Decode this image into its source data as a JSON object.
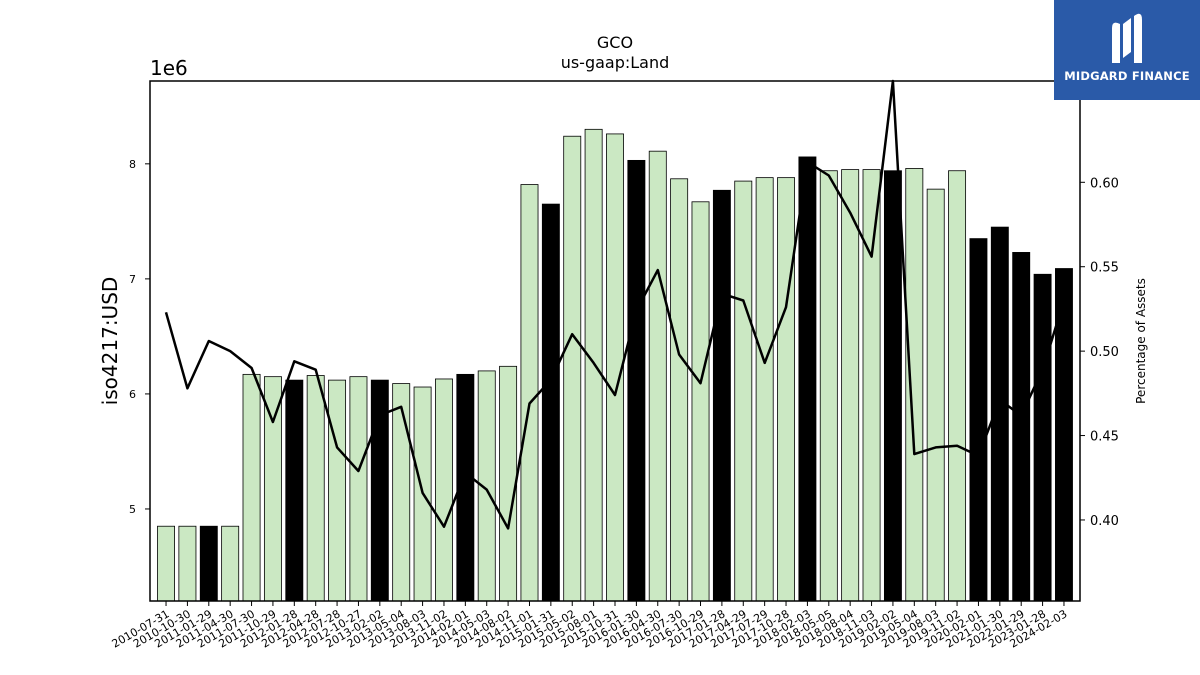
{
  "chart_data": {
    "type": "bar",
    "title": "GCO",
    "subtitle": "us-gaap:Land",
    "ylabel": "iso4217:USD",
    "y2label": "Percentage of Assets",
    "y_multiplier": "1e6",
    "ylim": [
      4.2,
      8.72
    ],
    "y2lim": [
      0.352,
      0.66
    ],
    "yticks": [
      5,
      6,
      7,
      8
    ],
    "y2ticks": [
      "0.40",
      "0.45",
      "0.50",
      "0.55",
      "0.60"
    ],
    "categories": [
      "2010-07-31",
      "2010-10-30",
      "2011-01-29",
      "2011-04-30",
      "2011-07-30",
      "2011-10-29",
      "2012-01-28",
      "2012-04-28",
      "2012-07-28",
      "2012-10-27",
      "2013-02-02",
      "2013-05-04",
      "2013-08-03",
      "2013-11-02",
      "2014-02-01",
      "2014-05-03",
      "2014-08-02",
      "2014-11-01",
      "2015-01-31",
      "2015-05-02",
      "2015-08-01",
      "2015-10-31",
      "2016-01-30",
      "2016-04-30",
      "2016-07-30",
      "2016-10-29",
      "2017-01-28",
      "2017-04-29",
      "2017-07-29",
      "2017-10-28",
      "2018-02-03",
      "2018-05-05",
      "2018-08-04",
      "2018-11-03",
      "2019-02-02",
      "2019-05-04",
      "2019-08-03",
      "2019-11-02",
      "2020-02-01",
      "2021-01-30",
      "2022-01-29",
      "2023-01-28",
      "2024-02-03"
    ],
    "series": [
      {
        "kind": "bar",
        "values": [
          4.85,
          4.85,
          4.85,
          4.85,
          6.17,
          6.15,
          6.12,
          6.16,
          6.12,
          6.15,
          6.12,
          6.09,
          6.06,
          6.13,
          6.17,
          6.2,
          6.24,
          7.82,
          7.65,
          8.24,
          8.3,
          8.26,
          8.03,
          8.11,
          7.87,
          7.67,
          7.77,
          7.85,
          7.88,
          7.88,
          8.06,
          7.94,
          7.95,
          7.95,
          7.94,
          7.96,
          7.78,
          7.94,
          7.35,
          7.45,
          7.23,
          7.04,
          7.09
        ],
        "highlight": [
          false,
          false,
          true,
          false,
          false,
          false,
          true,
          false,
          false,
          false,
          true,
          false,
          false,
          false,
          true,
          false,
          false,
          false,
          true,
          false,
          false,
          false,
          true,
          false,
          false,
          false,
          true,
          false,
          false,
          false,
          true,
          false,
          false,
          false,
          true,
          false,
          false,
          false,
          true,
          true,
          true,
          true,
          true
        ]
      },
      {
        "kind": "line",
        "axis": "right",
        "values": [
          0.523,
          0.478,
          0.506,
          0.5,
          0.49,
          0.458,
          0.494,
          0.489,
          0.443,
          0.429,
          0.462,
          0.467,
          0.416,
          0.396,
          0.428,
          0.418,
          0.395,
          0.469,
          0.483,
          0.51,
          0.493,
          0.474,
          0.524,
          0.548,
          0.498,
          0.481,
          0.534,
          0.53,
          0.493,
          0.526,
          0.612,
          0.604,
          0.582,
          0.556,
          0.66,
          0.439,
          0.443,
          0.444,
          0.438,
          0.471,
          0.462,
          0.489,
          0.53
        ]
      }
    ],
    "colors": {
      "bar": "#cbe8c3",
      "bar_highlight": "#000000",
      "line": "#000000"
    }
  },
  "logo": {
    "text": "MIDGARD FINANCE"
  }
}
